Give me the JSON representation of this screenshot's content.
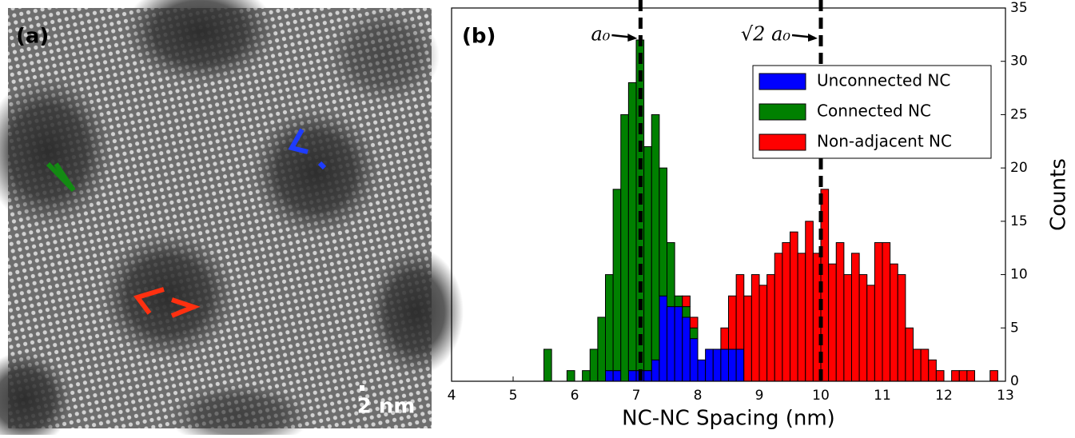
{
  "image_panel": {
    "label": "(a)",
    "scale_bar": "2 nm"
  },
  "chart_data": {
    "type": "histogram",
    "panel_label": "(b)",
    "xlabel": "NC-NC Spacing (nm)",
    "ylabel": "Counts",
    "bins": [
      5.5,
      5.625,
      5.75,
      5.875,
      6.0,
      6.125,
      6.25,
      6.375,
      6.5,
      6.625,
      6.75,
      6.875,
      7.0,
      7.125,
      7.25,
      7.375,
      7.5,
      7.625,
      7.75,
      7.875,
      8.0,
      8.125,
      8.25,
      8.375,
      8.5,
      8.625,
      8.75,
      8.875,
      9.0,
      9.125,
      9.25,
      9.375,
      9.5,
      9.625,
      9.75,
      9.875,
      10.0,
      10.125,
      10.25,
      10.375,
      10.5,
      10.625,
      10.75,
      10.875,
      11.0,
      11.125,
      11.25,
      11.375,
      11.5,
      11.625,
      11.75,
      11.875,
      12.0,
      12.125,
      12.25,
      12.375,
      12.5,
      12.625,
      12.75,
      12.875
    ],
    "stacked": true,
    "series": [
      {
        "name": "Unconnected NC",
        "color": "#0000ff",
        "values": [
          0,
          0,
          0,
          0,
          0,
          0,
          0,
          0,
          1,
          1,
          0,
          1,
          1,
          1,
          2,
          8,
          7,
          7,
          6,
          4,
          2,
          3,
          3,
          3,
          3,
          3,
          0,
          0,
          0,
          0,
          0,
          0,
          0,
          0,
          0,
          0,
          0,
          0,
          0,
          0,
          0,
          0,
          0,
          0,
          0,
          0,
          0,
          0,
          0,
          0,
          0,
          0,
          0,
          0,
          0,
          0,
          0,
          0,
          0
        ]
      },
      {
        "name": "Connected NC",
        "color": "#008000",
        "values": [
          3,
          0,
          0,
          1,
          0,
          1,
          3,
          6,
          9,
          17,
          25,
          27,
          31,
          21,
          23,
          12,
          6,
          1,
          1,
          1,
          0,
          0,
          0,
          0,
          0,
          0,
          0,
          0,
          0,
          0,
          0,
          0,
          0,
          0,
          0,
          0,
          0,
          0,
          0,
          0,
          0,
          0,
          0,
          0,
          0,
          0,
          0,
          0,
          0,
          0,
          0,
          0,
          0,
          0,
          0,
          0,
          0,
          0,
          0
        ]
      },
      {
        "name": "Non-adjacent NC",
        "color": "#ff0000",
        "values": [
          0,
          0,
          0,
          0,
          0,
          0,
          0,
          0,
          0,
          0,
          0,
          0,
          0,
          0,
          0,
          0,
          0,
          0,
          1,
          1,
          0,
          0,
          0,
          2,
          5,
          7,
          8,
          10,
          9,
          10,
          12,
          13,
          14,
          12,
          15,
          12,
          18,
          11,
          13,
          10,
          12,
          10,
          9,
          13,
          13,
          11,
          10,
          5,
          3,
          3,
          2,
          1,
          0,
          1,
          1,
          1,
          0,
          0,
          1
        ]
      }
    ],
    "xlim": [
      4,
      13
    ],
    "ylim": [
      0,
      35
    ],
    "xticks": [
      4,
      5,
      6,
      7,
      8,
      9,
      10,
      11,
      12,
      13
    ],
    "yticks": [
      0,
      5,
      10,
      15,
      20,
      25,
      30,
      35
    ],
    "y_axis_side": "right",
    "legend": "upper right",
    "vlines": [
      7.07,
      10.0
    ],
    "annotations": [
      {
        "text": "a₀",
        "x": 7.07
      },
      {
        "text": "√2 a₀",
        "x": 10.0
      }
    ]
  }
}
